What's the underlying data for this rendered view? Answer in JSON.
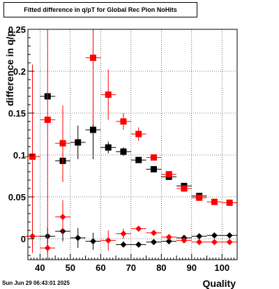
{
  "chart_data": {
    "type": "scatter",
    "title": "Fitted difference in q/pT for Global Rec Pion NoHits",
    "xlabel": "Quality",
    "ylabel": "difference in q/p",
    "xlim": [
      36,
      105
    ],
    "ylim": [
      -0.025,
      0.25
    ],
    "x_ticks": [
      40,
      50,
      60,
      70,
      80,
      90,
      100
    ],
    "y_ticks": [
      {
        "v": 0,
        "label": "0"
      },
      {
        "v": 0.05,
        "label": "0.05"
      },
      {
        "v": 0.1,
        "label": "0.1"
      },
      {
        "v": 0.15,
        "label": "0.15"
      },
      {
        "v": 0.2,
        "label": "0.2"
      },
      {
        "v": 0.25,
        "label": "0.25"
      }
    ],
    "grid": true,
    "series": [
      {
        "color": "#000000",
        "marker": "square",
        "points": [
          {
            "x": 42.5,
            "y": 0.17,
            "yerr": 0
          },
          {
            "x": 47.5,
            "y": 0.093,
            "yerr": 0.025
          },
          {
            "x": 52.5,
            "y": 0.115,
            "yerr": 0.02
          },
          {
            "x": 57.5,
            "y": 0.13,
            "yerr": 0.035
          },
          {
            "x": 62.5,
            "y": 0.109,
            "yerr": 0.007
          },
          {
            "x": 67.5,
            "y": 0.104,
            "yerr": 0.005
          },
          {
            "x": 72.5,
            "y": 0.094,
            "yerr": 0.003
          },
          {
            "x": 77.5,
            "y": 0.083,
            "yerr": 0.002
          },
          {
            "x": 82.5,
            "y": 0.074,
            "yerr": 0.002
          },
          {
            "x": 87.5,
            "y": 0.063,
            "yerr": 0.002
          },
          {
            "x": 92.5,
            "y": 0.051,
            "yerr": 0.001
          }
        ]
      },
      {
        "color": "#ff0000",
        "marker": "square",
        "points": [
          {
            "x": 37.5,
            "y": 0.098,
            "yerr": 0.11
          },
          {
            "x": 42.5,
            "y": 0.142,
            "yerr": 0.16
          },
          {
            "x": 47.5,
            "y": 0.114,
            "yerr": 0.045
          },
          {
            "x": 57.5,
            "y": 0.216,
            "yerr": 0.08
          },
          {
            "x": 62.5,
            "y": 0.172,
            "yerr": 0.03
          },
          {
            "x": 67.5,
            "y": 0.14,
            "yerr": 0.01
          },
          {
            "x": 72.5,
            "y": 0.125,
            "yerr": 0.008
          },
          {
            "x": 77.5,
            "y": 0.097,
            "yerr": 0.003
          },
          {
            "x": 82.5,
            "y": 0.077,
            "yerr": 0.002
          },
          {
            "x": 87.5,
            "y": 0.06,
            "yerr": 0.002
          },
          {
            "x": 92.5,
            "y": 0.049,
            "yerr": 0.001
          },
          {
            "x": 97.5,
            "y": 0.044,
            "yerr": 0.001
          },
          {
            "x": 102.5,
            "y": 0.043,
            "yerr": 0.001
          }
        ]
      },
      {
        "color": "#000000",
        "marker": "diamond",
        "points": [
          {
            "x": 42.5,
            "y": 0.003,
            "yerr": 0.01
          },
          {
            "x": 47.5,
            "y": 0.009,
            "yerr": 0.012
          },
          {
            "x": 52.5,
            "y": 0.001,
            "yerr": 0.012
          },
          {
            "x": 57.5,
            "y": -0.003,
            "yerr": 0.01
          },
          {
            "x": 67.5,
            "y": -0.007,
            "yerr": 0.003
          },
          {
            "x": 72.5,
            "y": -0.007,
            "yerr": 0.002
          },
          {
            "x": 77.5,
            "y": -0.004,
            "yerr": 0.002
          },
          {
            "x": 82.5,
            "y": -0.003,
            "yerr": 0.001
          },
          {
            "x": 87.5,
            "y": 0.001,
            "yerr": 0.001
          },
          {
            "x": 92.5,
            "y": 0.003,
            "yerr": 0.001
          },
          {
            "x": 97.5,
            "y": 0.004,
            "yerr": 0.001
          },
          {
            "x": 102.5,
            "y": 0.004,
            "yerr": 0.001
          }
        ]
      },
      {
        "color": "#ff0000",
        "marker": "diamond",
        "points": [
          {
            "x": 37.5,
            "y": 0.003,
            "yerr": 0.02
          },
          {
            "x": 42.5,
            "y": -0.011,
            "yerr": 0.025
          },
          {
            "x": 47.5,
            "y": 0.026,
            "yerr": 0.02
          },
          {
            "x": 62.5,
            "y": -0.002,
            "yerr": 0.012
          },
          {
            "x": 67.5,
            "y": 0.006,
            "yerr": 0.006
          },
          {
            "x": 72.5,
            "y": 0.012,
            "yerr": 0.003
          },
          {
            "x": 77.5,
            "y": 0.007,
            "yerr": 0.002
          },
          {
            "x": 82.5,
            "y": 0.002,
            "yerr": 0.001
          },
          {
            "x": 87.5,
            "y": -0.002,
            "yerr": 0.001
          },
          {
            "x": 92.5,
            "y": -0.004,
            "yerr": 0.001
          },
          {
            "x": 97.5,
            "y": -0.004,
            "yerr": 0.001
          },
          {
            "x": 102.5,
            "y": -0.004,
            "yerr": 0.001
          }
        ]
      }
    ]
  },
  "footer": {
    "timestamp": "Sun Jun 29 06:43:01 2025"
  }
}
